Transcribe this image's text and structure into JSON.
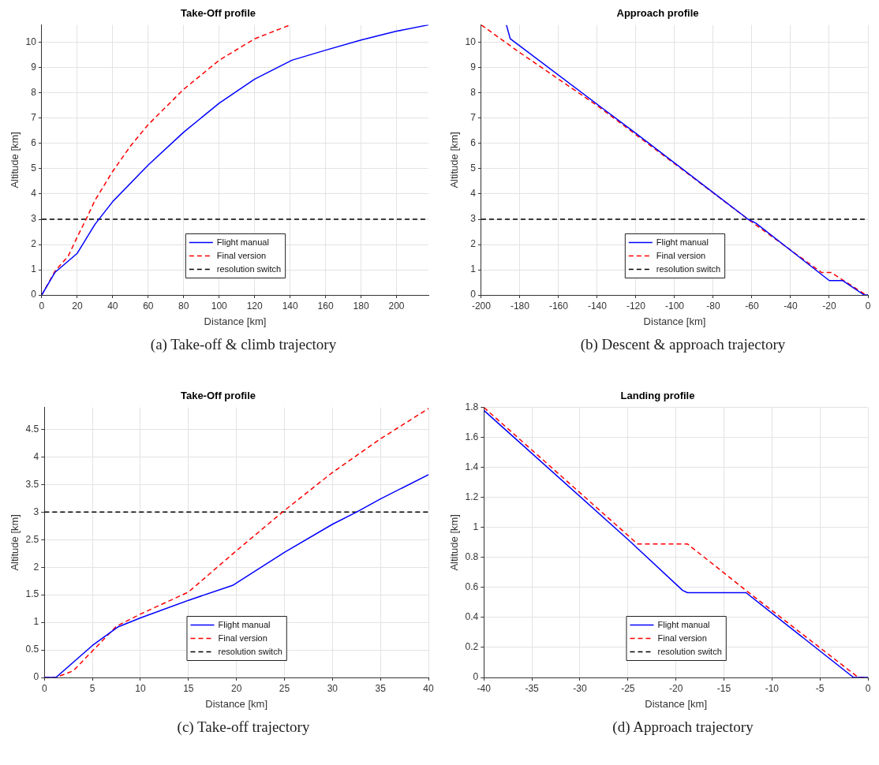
{
  "chart_data": [
    {
      "type": "line",
      "title": "Take-Off profile",
      "xlabel": "Distance [km]",
      "ylabel": "Altitude [km]",
      "xlim": [
        0,
        218
      ],
      "ylim": [
        0,
        10.7
      ],
      "xticks": [
        0,
        20,
        40,
        60,
        80,
        100,
        120,
        140,
        160,
        180,
        200
      ],
      "yticks": [
        0,
        1,
        2,
        3,
        4,
        5,
        6,
        7,
        8,
        9,
        10
      ],
      "grid": true,
      "legend": "bottom",
      "annotations": [
        "(a) Take-off & climb trajectory"
      ],
      "series": [
        {
          "name": "Flight manual",
          "color": "#0000ff",
          "line_style": "solid",
          "x": [
            0,
            7.5,
            20,
            30,
            40,
            60,
            80,
            100,
            120,
            141,
            160,
            180,
            200,
            218
          ],
          "values": [
            0,
            0.9,
            1.65,
            2.8,
            3.7,
            5.15,
            6.45,
            7.6,
            8.55,
            9.3,
            9.7,
            10.1,
            10.45,
            10.7
          ]
        },
        {
          "name": "Final version",
          "color": "#ff0000",
          "line_style": "dashed",
          "x": [
            0,
            7.5,
            15,
            20,
            25,
            30,
            40,
            50,
            60,
            80,
            100,
            120,
            140
          ],
          "values": [
            0,
            0.95,
            1.55,
            2.3,
            3,
            3.75,
            4.9,
            5.9,
            6.75,
            8.15,
            9.3,
            10.15,
            10.7
          ]
        },
        {
          "name": "resolution switch",
          "color": "#000000",
          "line_style": "dashed",
          "x": [
            0,
            218
          ],
          "values": [
            3,
            3
          ]
        }
      ]
    },
    {
      "type": "line",
      "title": "Approach profile",
      "xlabel": "Distance [km]",
      "ylabel": "Altitude [km]",
      "xlim": [
        -200,
        0
      ],
      "ylim": [
        0,
        10.7
      ],
      "xticks": [
        -200,
        -180,
        -160,
        -140,
        -120,
        -100,
        -80,
        -60,
        -40,
        -20,
        0
      ],
      "yticks": [
        0,
        1,
        2,
        3,
        4,
        5,
        6,
        7,
        8,
        9,
        10
      ],
      "grid": true,
      "legend": "bottom",
      "annotations": [
        "(b) Descent & approach trajectory"
      ],
      "series": [
        {
          "name": "Flight manual",
          "color": "#0000ff",
          "line_style": "solid",
          "x": [
            -187,
            -185,
            -120,
            -62,
            -58,
            -20,
            -13,
            -2,
            0
          ],
          "values": [
            10.7,
            10.15,
            6.4,
            3,
            2.85,
            0.57,
            0.57,
            0,
            0
          ]
        },
        {
          "name": "Final version",
          "color": "#ff0000",
          "line_style": "dashed",
          "x": [
            -200,
            -180,
            -140,
            -100,
            -62,
            -24,
            -19,
            -1,
            0
          ],
          "values": [
            10.7,
            9.6,
            7.5,
            5.2,
            3,
            0.89,
            0.89,
            0,
            0
          ]
        },
        {
          "name": "resolution switch",
          "color": "#000000",
          "line_style": "dashed",
          "x": [
            -200,
            0
          ],
          "values": [
            3,
            3
          ]
        }
      ]
    },
    {
      "type": "line",
      "title": "Take-Off profile",
      "xlabel": "Distance [km]",
      "ylabel": "Altitude [km]",
      "xlim": [
        0,
        40
      ],
      "ylim": [
        0,
        4.9
      ],
      "xticks": [
        0,
        5,
        10,
        15,
        20,
        25,
        30,
        35,
        40
      ],
      "yticks": [
        0,
        0.5,
        1,
        1.5,
        2,
        2.5,
        3,
        3.5,
        4,
        4.5
      ],
      "grid": true,
      "legend": "bottom",
      "annotations": [
        "(c) Take-off trajectory"
      ],
      "series": [
        {
          "name": "Flight manual",
          "color": "#0000ff",
          "line_style": "solid",
          "x": [
            0,
            1.2,
            5,
            7.7,
            10,
            15,
            19.6,
            25,
            30,
            32.5,
            35,
            40
          ],
          "values": [
            0,
            0,
            0.58,
            0.92,
            1.08,
            1.4,
            1.67,
            2.27,
            2.78,
            3,
            3.24,
            3.68
          ]
        },
        {
          "name": "Final version",
          "color": "#ff0000",
          "line_style": "dashed",
          "x": [
            0,
            1.2,
            3,
            5,
            7.5,
            10,
            15,
            20,
            25,
            30,
            35,
            40
          ],
          "values": [
            0,
            0,
            0.12,
            0.48,
            0.93,
            1.15,
            1.55,
            2.3,
            3.03,
            3.72,
            4.33,
            4.88
          ]
        },
        {
          "name": "resolution switch",
          "color": "#000000",
          "line_style": "dashed",
          "x": [
            0,
            40
          ],
          "values": [
            3,
            3
          ]
        }
      ]
    },
    {
      "type": "line",
      "title": "Landing profile",
      "xlabel": "Distance [km]",
      "ylabel": "Altitude [km]",
      "xlim": [
        -40,
        0
      ],
      "ylim": [
        0,
        1.8
      ],
      "xticks": [
        -40,
        -35,
        -30,
        -25,
        -20,
        -15,
        -10,
        -5,
        0
      ],
      "yticks": [
        0,
        0.2,
        0.4,
        0.6,
        0.8,
        1,
        1.2,
        1.4,
        1.6,
        1.8
      ],
      "grid": true,
      "legend": "bottom",
      "annotations": [
        "(d) Approach trajectory"
      ],
      "series": [
        {
          "name": "Flight manual",
          "color": "#0000ff",
          "line_style": "solid",
          "x": [
            -40,
            -25,
            -19.3,
            -18.8,
            -12.7,
            -1.5,
            0
          ],
          "values": [
            1.78,
            0.92,
            0.58,
            0.565,
            0.565,
            0,
            0
          ]
        },
        {
          "name": "Final version",
          "color": "#ff0000",
          "line_style": "dashed",
          "x": [
            -40,
            -24,
            -18.8,
            -12.7,
            -1,
            0
          ],
          "values": [
            1.8,
            0.89,
            0.89,
            0.58,
            0,
            0
          ]
        },
        {
          "name": "resolution switch",
          "color": "#000000",
          "line_style": "dashed"
        }
      ]
    }
  ]
}
